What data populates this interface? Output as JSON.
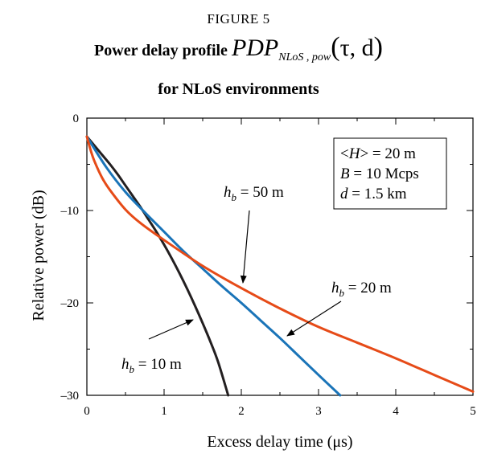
{
  "figure": {
    "label": "FIGURE 5",
    "title_bold": "Power delay profile",
    "title_symbol": "PDP",
    "title_subscript": "NLoS , pow",
    "title_args": "τ, d",
    "title_line2": "for NLoS environments"
  },
  "chart_data": {
    "type": "line",
    "xlabel": "Excess delay time (μs)",
    "ylabel": "Relative power (dB)",
    "xlim": [
      0,
      5
    ],
    "ylim": [
      -30,
      0
    ],
    "xticks": [
      "0",
      "1",
      "2",
      "3",
      "4",
      "5"
    ],
    "yticks": [
      "0",
      "–10",
      "–20",
      "–30"
    ],
    "grid": false,
    "series": [
      {
        "name": "h_b = 10 m",
        "color": "#231f20",
        "x": [
          0,
          0.1,
          0.2,
          0.3,
          0.4,
          0.5,
          0.6,
          0.7,
          0.8,
          0.9,
          1.0,
          1.1,
          1.2,
          1.3,
          1.4,
          1.5,
          1.6,
          1.7,
          1.83
        ],
        "y": [
          -2.0,
          -3.0,
          -4.0,
          -5.0,
          -6.1,
          -7.3,
          -8.5,
          -9.7,
          -11.0,
          -12.3,
          -13.7,
          -15.2,
          -16.8,
          -18.5,
          -20.3,
          -22.2,
          -24.2,
          -26.4,
          -30.0
        ]
      },
      {
        "name": "h_b = 50 m",
        "color": "#1a74b8",
        "x": [
          0,
          0.25,
          0.5,
          0.75,
          1.0,
          1.25,
          1.5,
          1.75,
          2.0,
          2.25,
          2.5,
          2.75,
          3.0,
          3.28
        ],
        "y": [
          -2.0,
          -5.3,
          -8.0,
          -10.2,
          -12.3,
          -14.4,
          -16.3,
          -18.2,
          -20.0,
          -21.9,
          -23.8,
          -25.8,
          -27.8,
          -30.0
        ]
      },
      {
        "name": "h_b = 20 m",
        "color": "#e64b18",
        "x": [
          0,
          0.05,
          0.1,
          0.2,
          0.3,
          0.5,
          0.7,
          1.0,
          1.5,
          2.0,
          2.5,
          3.0,
          3.5,
          4.0,
          4.5,
          5.0
        ],
        "y": [
          -2.0,
          -3.5,
          -4.7,
          -6.5,
          -7.8,
          -9.9,
          -11.4,
          -13.2,
          -16.0,
          -18.4,
          -20.6,
          -22.6,
          -24.3,
          -26.0,
          -27.8,
          -29.6
        ]
      }
    ],
    "annotations": {
      "hb10": {
        "h": "h",
        "sub": "b",
        "rest": " = 10 m"
      },
      "hb50": {
        "h": "h",
        "sub": "b",
        "rest": " = 50 m"
      },
      "hb20": {
        "h": "h",
        "sub": "b",
        "rest": " = 20 m"
      }
    },
    "info_box": {
      "line1_a": "<",
      "line1_var": "H",
      "line1_b": "> = 20 m",
      "line2_var": "B",
      "line2_b": " = 10 Mcps",
      "line3_var": "d",
      "line3_b": " = 1.5 km"
    }
  }
}
